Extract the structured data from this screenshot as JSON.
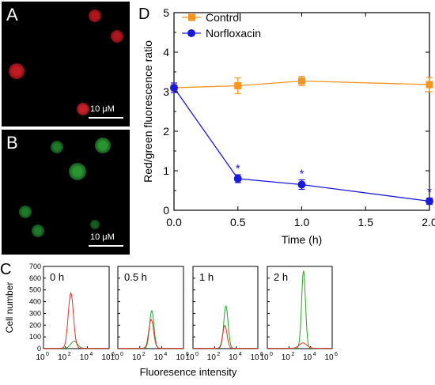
{
  "panels": {
    "a": {
      "letter": "A",
      "scale_label": "10 μM",
      "cell_color": "#d0202a"
    },
    "b": {
      "letter": "B",
      "scale_label": "10 μM",
      "cell_color": "#2f8f3a"
    },
    "c": {
      "letter": "C"
    },
    "d": {
      "letter": "D"
    }
  },
  "chart_data": [
    {
      "type": "line",
      "panel": "D",
      "xlabel": "Time (h)",
      "ylabel": "Red/green fluorescence ratio",
      "xlim": [
        0.0,
        2.0
      ],
      "ylim": [
        0,
        5
      ],
      "x_ticks": [
        "0.0",
        "0.5",
        "1.0",
        "1.5",
        "2.0"
      ],
      "y_ticks": [
        "0",
        "1",
        "2",
        "3",
        "4",
        "5"
      ],
      "x_tick_values": [
        0,
        0.5,
        1.0,
        1.5,
        2.0
      ],
      "y_tick_values": [
        0,
        1,
        2,
        3,
        4,
        5
      ],
      "legend_position": "top-left",
      "x": [
        0.0,
        0.5,
        1.0,
        2.0
      ],
      "series": [
        {
          "name": "Control",
          "color": "#f7941d",
          "marker": "square",
          "values": [
            3.1,
            3.15,
            3.27,
            3.18
          ],
          "errors": [
            0.12,
            0.2,
            0.12,
            0.18
          ],
          "annotations": [
            "",
            "",
            "",
            ""
          ]
        },
        {
          "name": "Norfloxacin",
          "color": "#1a1adc",
          "marker": "circle",
          "values": [
            3.1,
            0.8,
            0.65,
            0.23
          ],
          "errors": [
            0.12,
            0.1,
            0.12,
            0.08
          ],
          "annotations": [
            "",
            "*",
            "*",
            "*"
          ]
        }
      ]
    },
    {
      "type": "line",
      "panel": "C",
      "ylabel": "Cell number",
      "xlabel": "Fluoresence intensity",
      "x_scale": "log",
      "ylim": [
        0,
        700
      ],
      "y_ticks": [
        "0",
        "100",
        "200",
        "300",
        "400",
        "500",
        "600",
        "700"
      ],
      "y_tick_values": [
        0,
        100,
        200,
        300,
        400,
        500,
        600,
        700
      ],
      "x_tick_exponents": [
        "0",
        "2",
        "4",
        "6"
      ],
      "x_tick_base": "10",
      "series_colors": {
        "red": "#e2322d",
        "green": "#2aa22a"
      },
      "subplots": [
        {
          "label": "0 h",
          "red_peak": 470,
          "green_peak": 60,
          "red_center": 2.5,
          "green_center": 2.8,
          "red_width": 0.24,
          "green_width": 0.3
        },
        {
          "label": "0.5 h",
          "red_peak": 245,
          "green_peak": 320,
          "red_center": 3.05,
          "green_center": 3.1,
          "red_width": 0.22,
          "green_width": 0.2
        },
        {
          "label": "1 h",
          "red_peak": 195,
          "green_peak": 360,
          "red_center": 2.95,
          "green_center": 3.05,
          "red_width": 0.2,
          "green_width": 0.2
        },
        {
          "label": "2 h",
          "red_peak": 45,
          "green_peak": 660,
          "red_center": 3.3,
          "green_center": 3.35,
          "red_width": 0.35,
          "green_width": 0.18
        }
      ]
    }
  ]
}
